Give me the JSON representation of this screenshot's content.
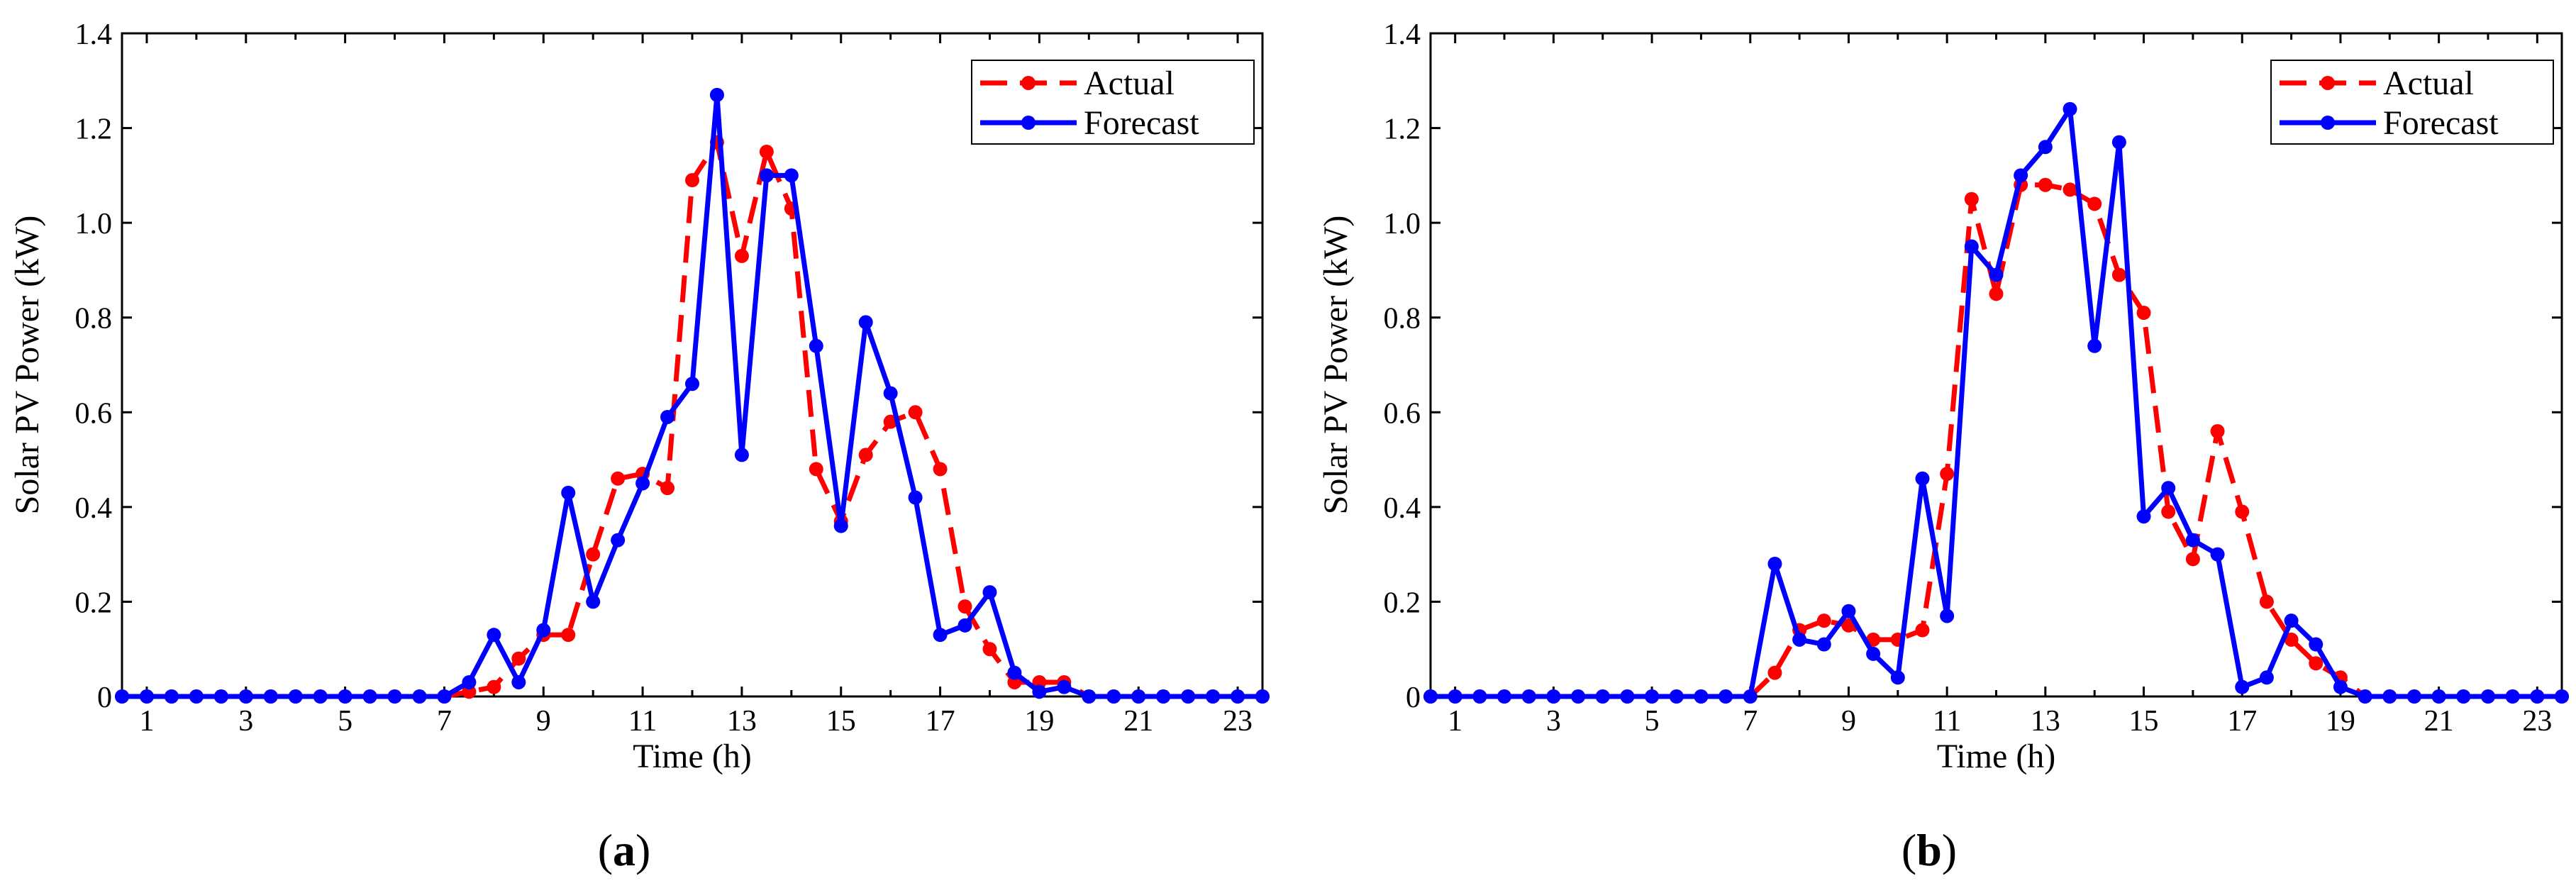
{
  "panels": [
    {
      "panel_label": "a",
      "chart_data": {
        "type": "line",
        "title": "",
        "xlabel": "Time (h)",
        "ylabel": "Solar PV Power (kW)",
        "xlim": [
          0.5,
          23.5
        ],
        "ylim": [
          0,
          1.4
        ],
        "x_ticks": [
          1,
          3,
          5,
          7,
          9,
          11,
          13,
          15,
          17,
          19,
          21,
          23
        ],
        "y_ticks": [
          0,
          0.2,
          0.4,
          0.6,
          0.8,
          1.0,
          1.2,
          1.4
        ],
        "y_tick_labels": [
          "0",
          "0.2",
          "0.4",
          "0.6",
          "0.8",
          "1.0",
          "1.2",
          "1.4"
        ],
        "legend_position": "top-right",
        "x": [
          0.5,
          1,
          1.5,
          2,
          2.5,
          3,
          3.5,
          4,
          4.5,
          5,
          5.5,
          6,
          6.5,
          7,
          7.5,
          8,
          8.5,
          9,
          9.5,
          10,
          10.5,
          11,
          11.5,
          12,
          12.5,
          13,
          13.5,
          14,
          14.5,
          15,
          15.5,
          16,
          16.5,
          17,
          17.5,
          18,
          18.5,
          19,
          19.5,
          20,
          20.5,
          21,
          21.5,
          22,
          22.5,
          23,
          23.5
        ],
        "series": [
          {
            "name": "Actual",
            "color": "#ff0000",
            "dash": true,
            "values": [
              0,
              0,
              0,
              0,
              0,
              0,
              0,
              0,
              0,
              0,
              0,
              0,
              0,
              0,
              0.01,
              0.02,
              0.08,
              0.13,
              0.13,
              0.3,
              0.46,
              0.47,
              0.44,
              1.09,
              1.17,
              0.93,
              1.15,
              1.03,
              0.48,
              0.37,
              0.51,
              0.58,
              0.6,
              0.48,
              0.19,
              0.1,
              0.03,
              0.03,
              0.03,
              0,
              0,
              0,
              0,
              0,
              0,
              0,
              0
            ]
          },
          {
            "name": "Forecast",
            "color": "#0000ff",
            "dash": false,
            "values": [
              0,
              0,
              0,
              0,
              0,
              0,
              0,
              0,
              0,
              0,
              0,
              0,
              0,
              0,
              0.03,
              0.13,
              0.03,
              0.14,
              0.43,
              0.2,
              0.33,
              0.45,
              0.59,
              0.66,
              1.27,
              0.51,
              1.1,
              1.1,
              0.74,
              0.36,
              0.79,
              0.64,
              0.42,
              0.13,
              0.15,
              0.22,
              0.05,
              0.01,
              0.02,
              0,
              0,
              0,
              0,
              0,
              0,
              0,
              0
            ]
          }
        ]
      }
    },
    {
      "panel_label": "b",
      "chart_data": {
        "type": "line",
        "title": "",
        "xlabel": "Time (h)",
        "ylabel": "Solar PV Power (kW)",
        "xlim": [
          0.5,
          23.5
        ],
        "ylim": [
          0,
          1.4
        ],
        "x_ticks": [
          1,
          3,
          5,
          7,
          9,
          11,
          13,
          15,
          17,
          19,
          21,
          23
        ],
        "y_ticks": [
          0,
          0.2,
          0.4,
          0.6,
          0.8,
          1.0,
          1.2,
          1.4
        ],
        "y_tick_labels": [
          "0",
          "0.2",
          "0.4",
          "0.6",
          "0.8",
          "1.0",
          "1.2",
          "1.4"
        ],
        "legend_position": "top-right",
        "x": [
          0.5,
          1,
          1.5,
          2,
          2.5,
          3,
          3.5,
          4,
          4.5,
          5,
          5.5,
          6,
          6.5,
          7,
          7.5,
          8,
          8.5,
          9,
          9.5,
          10,
          10.5,
          11,
          11.5,
          12,
          12.5,
          13,
          13.5,
          14,
          14.5,
          15,
          15.5,
          16,
          16.5,
          17,
          17.5,
          18,
          18.5,
          19,
          19.5,
          20,
          20.5,
          21,
          21.5,
          22,
          22.5,
          23,
          23.5
        ],
        "series": [
          {
            "name": "Actual",
            "color": "#ff0000",
            "dash": true,
            "values": [
              0,
              0,
              0,
              0,
              0,
              0,
              0,
              0,
              0,
              0,
              0,
              0,
              0,
              0,
              0.05,
              0.14,
              0.16,
              0.15,
              0.12,
              0.12,
              0.14,
              0.47,
              1.05,
              0.85,
              1.08,
              1.08,
              1.07,
              1.04,
              0.89,
              0.81,
              0.39,
              0.29,
              0.56,
              0.39,
              0.2,
              0.12,
              0.07,
              0.04,
              0,
              0,
              0,
              0,
              0,
              0,
              0,
              0,
              0
            ]
          },
          {
            "name": "Forecast",
            "color": "#0000ff",
            "dash": false,
            "values": [
              0,
              0,
              0,
              0,
              0,
              0,
              0,
              0,
              0,
              0,
              0,
              0,
              0,
              0,
              0.28,
              0.12,
              0.11,
              0.18,
              0.09,
              0.04,
              0.46,
              0.17,
              0.95,
              0.89,
              1.1,
              1.16,
              1.24,
              0.74,
              1.17,
              0.38,
              0.44,
              0.33,
              0.3,
              0.02,
              0.04,
              0.16,
              0.11,
              0.02,
              0,
              0,
              0,
              0,
              0,
              0,
              0,
              0,
              0
            ]
          }
        ]
      }
    }
  ]
}
